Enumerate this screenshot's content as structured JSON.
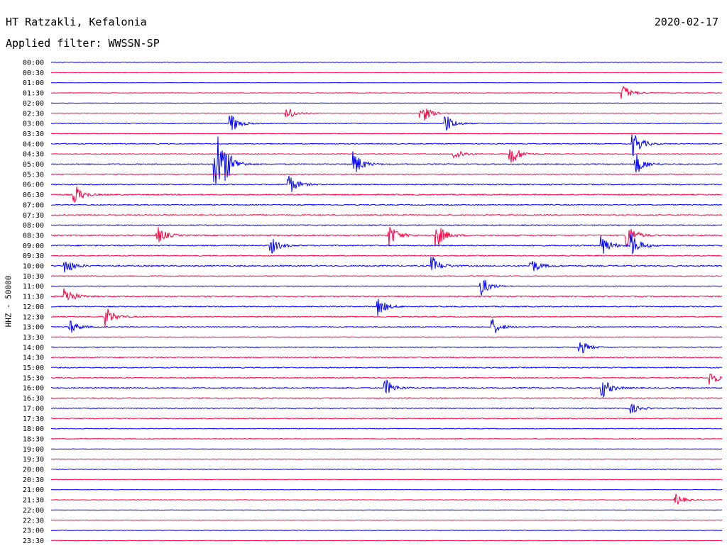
{
  "header": {
    "station": "HT Ratzakli, Kefalonia",
    "filter": "Applied filter: WWSSN-SP",
    "date": "2020-02-17",
    "channel_label": "HHZ - 50000"
  },
  "chart_data": {
    "type": "line",
    "title": "HT Ratzakli, Kefalonia",
    "subtitle": "Applied filter: WWSSN-SP",
    "ylabel": "HHZ - 50000",
    "trace_colors": [
      "#0000ff",
      "#ff0040"
    ],
    "row_labels": [
      "00:00",
      "00:30",
      "01:00",
      "01:30",
      "02:00",
      "02:30",
      "03:00",
      "03:30",
      "04:00",
      "04:30",
      "05:00",
      "05:30",
      "06:00",
      "06:30",
      "07:00",
      "07:30",
      "08:00",
      "08:30",
      "09:00",
      "09:30",
      "10:00",
      "10:30",
      "11:00",
      "11:30",
      "12:00",
      "12:30",
      "13:00",
      "13:30",
      "14:00",
      "14:30",
      "15:00",
      "15:30",
      "16:00",
      "16:30",
      "17:00",
      "17:30",
      "18:00",
      "18:30",
      "19:00",
      "19:30",
      "20:00",
      "20:30",
      "21:00",
      "21:30",
      "22:00",
      "22:30",
      "23:00",
      "23:30"
    ],
    "minutes_per_row": 30,
    "noise_levels": [
      0.25,
      0.2,
      0.25,
      0.35,
      0.3,
      0.35,
      0.4,
      0.35,
      0.6,
      0.5,
      0.7,
      0.6,
      0.7,
      0.8,
      0.7,
      0.8,
      0.7,
      0.8,
      0.8,
      0.7,
      0.9,
      0.6,
      0.5,
      0.8,
      0.7,
      0.7,
      0.6,
      0.5,
      0.6,
      0.7,
      0.7,
      0.7,
      0.8,
      0.7,
      0.6,
      0.6,
      0.5,
      0.5,
      0.3,
      0.4,
      0.4,
      0.3,
      0.3,
      0.35,
      0.3,
      0.3,
      0.3,
      0.35
    ],
    "events": [
      {
        "row": 3,
        "minute": 25.5,
        "amp": 1.8
      },
      {
        "row": 5,
        "minute": 10.5,
        "amp": 1.4
      },
      {
        "row": 5,
        "minute": 16.5,
        "amp": 2.2
      },
      {
        "row": 6,
        "minute": 8.0,
        "amp": 2.0
      },
      {
        "row": 6,
        "minute": 17.6,
        "amp": 2.0
      },
      {
        "row": 8,
        "minute": 26.0,
        "amp": 2.5
      },
      {
        "row": 9,
        "minute": 20.5,
        "amp": 2.5
      },
      {
        "row": 9,
        "minute": 18.0,
        "amp": 1.3
      },
      {
        "row": 10,
        "minute": 7.8,
        "amp": 1.6
      },
      {
        "row": 10,
        "minute": 13.5,
        "amp": 2.5
      },
      {
        "row": 10,
        "minute": 26.1,
        "amp": 2.2
      },
      {
        "row": 10,
        "minute": 7.3,
        "amp": 8.0
      },
      {
        "row": 12,
        "minute": 10.6,
        "amp": 2.0
      },
      {
        "row": 13,
        "minute": 1.0,
        "amp": 2.0
      },
      {
        "row": 17,
        "minute": 4.7,
        "amp": 1.8
      },
      {
        "row": 17,
        "minute": 15.1,
        "amp": 2.2
      },
      {
        "row": 17,
        "minute": 17.2,
        "amp": 2.5
      },
      {
        "row": 17,
        "minute": 25.7,
        "amp": 2.5
      },
      {
        "row": 18,
        "minute": 9.8,
        "amp": 1.6
      },
      {
        "row": 18,
        "minute": 24.6,
        "amp": 2.0
      },
      {
        "row": 18,
        "minute": 25.9,
        "amp": 2.5
      },
      {
        "row": 20,
        "minute": 0.6,
        "amp": 1.6
      },
      {
        "row": 20,
        "minute": 17.0,
        "amp": 1.8
      },
      {
        "row": 20,
        "minute": 21.4,
        "amp": 1.6
      },
      {
        "row": 22,
        "minute": 19.2,
        "amp": 2.0
      },
      {
        "row": 23,
        "minute": 0.6,
        "amp": 2.0
      },
      {
        "row": 24,
        "minute": 14.6,
        "amp": 1.8
      },
      {
        "row": 25,
        "minute": 2.4,
        "amp": 2.0
      },
      {
        "row": 26,
        "minute": 0.8,
        "amp": 1.4
      },
      {
        "row": 26,
        "minute": 19.7,
        "amp": 1.6
      },
      {
        "row": 28,
        "minute": 23.6,
        "amp": 1.5
      },
      {
        "row": 31,
        "minute": 29.4,
        "amp": 1.6
      },
      {
        "row": 32,
        "minute": 14.9,
        "amp": 1.8
      },
      {
        "row": 32,
        "minute": 24.6,
        "amp": 2.0
      },
      {
        "row": 34,
        "minute": 25.9,
        "amp": 1.0
      },
      {
        "row": 43,
        "minute": 27.9,
        "amp": 1.2
      }
    ]
  }
}
